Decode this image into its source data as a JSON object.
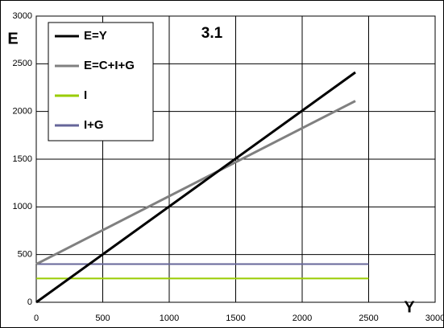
{
  "chart_data": {
    "type": "line",
    "title": "3.1",
    "x_label": "Y",
    "y_label": "E",
    "xlim": [
      0,
      3000
    ],
    "ylim": [
      0,
      3000
    ],
    "xticks": [
      0,
      500,
      1000,
      1500,
      2000,
      2500,
      3000
    ],
    "yticks": [
      0,
      500,
      1000,
      1500,
      2000,
      2500,
      3000
    ],
    "grid": true,
    "legend": "upper left",
    "series": [
      {
        "name": "E=Y",
        "color": "#000000",
        "x": [
          0,
          2400
        ],
        "values": [
          0,
          2410
        ]
      },
      {
        "name": "E=C+I+G",
        "color": "#808080",
        "x": [
          0,
          2400
        ],
        "values": [
          400,
          2110
        ]
      },
      {
        "name": "I",
        "color": "#99cc00",
        "x": [
          0,
          2500
        ],
        "values": [
          250,
          250
        ]
      },
      {
        "name": "I+G",
        "color": "#666699",
        "x": [
          0,
          2500
        ],
        "values": [
          400,
          400
        ]
      }
    ]
  }
}
